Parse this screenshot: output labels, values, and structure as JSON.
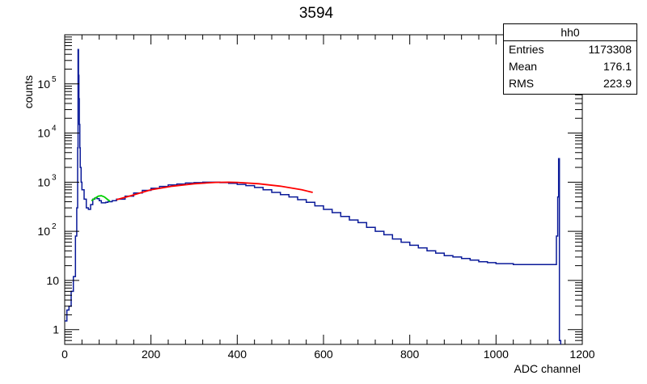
{
  "chart_data": {
    "type": "line",
    "title": "3594",
    "xlabel": "ADC channel",
    "ylabel": "counts",
    "xlim": [
      0,
      1200
    ],
    "ylim": [
      0.5,
      1000000
    ],
    "y_scale": "log",
    "x_ticks": [
      "0",
      "200",
      "400",
      "600",
      "800",
      "1000",
      "1200"
    ],
    "y_ticks": [
      "1",
      "10",
      "10^2",
      "10^3",
      "10^4",
      "10^5"
    ],
    "grid": false,
    "colors": {
      "histogram": "#0a1a99",
      "fit_main": "#ff0000",
      "fit_peak": "#00d000"
    },
    "series": [
      {
        "kind": "histogram",
        "x": [
          0,
          5,
          10,
          15,
          20,
          25,
          28,
          30,
          31,
          32,
          33,
          34,
          35,
          36,
          38,
          40,
          45,
          50,
          55,
          60,
          65,
          70,
          75,
          80,
          85,
          90,
          95,
          100,
          110,
          120,
          140,
          160,
          180,
          200,
          220,
          240,
          260,
          280,
          300,
          320,
          340,
          360,
          380,
          400,
          420,
          440,
          460,
          480,
          500,
          520,
          540,
          560,
          580,
          600,
          620,
          640,
          660,
          680,
          700,
          720,
          740,
          760,
          780,
          800,
          820,
          840,
          860,
          880,
          900,
          920,
          940,
          960,
          980,
          1000,
          1020,
          1040,
          1060,
          1080,
          1100,
          1120,
          1135,
          1140,
          1143,
          1145,
          1147,
          1150
        ],
        "y": [
          1.5,
          2.5,
          3,
          6,
          12,
          80,
          300,
          5000,
          500000,
          150000,
          50000,
          15000,
          5000,
          2000,
          1000,
          700,
          450,
          300,
          280,
          350,
          450,
          480,
          460,
          420,
          380,
          380,
          390,
          400,
          420,
          450,
          520,
          600,
          680,
          750,
          820,
          880,
          920,
          960,
          980,
          1000,
          1000,
          980,
          950,
          900,
          850,
          780,
          700,
          620,
          560,
          500,
          440,
          390,
          330,
          280,
          240,
          200,
          170,
          150,
          120,
          100,
          85,
          70,
          60,
          52,
          46,
          40,
          36,
          32,
          30,
          28,
          26,
          24,
          23,
          22,
          22,
          21,
          21,
          21,
          21,
          21,
          21,
          80,
          500,
          3000,
          0.6,
          0.5
        ]
      },
      {
        "kind": "fit",
        "name": "",
        "color": "red",
        "x": [
          120,
          150,
          200,
          250,
          300,
          350,
          380,
          400,
          450,
          500,
          550,
          575
        ],
        "y": [
          440,
          520,
          700,
          830,
          930,
          990,
          1000,
          990,
          930,
          830,
          700,
          620
        ]
      },
      {
        "kind": "fit",
        "name": "",
        "color": "green",
        "x": [
          62,
          70,
          78,
          85,
          92,
          100,
          105
        ],
        "y": [
          420,
          470,
          520,
          530,
          500,
          440,
          410
        ]
      }
    ]
  },
  "stats_box": {
    "name": "hh0",
    "rows": [
      {
        "label": "Entries",
        "value": "1173308"
      },
      {
        "label": "Mean",
        "value": "176.1"
      },
      {
        "label": "RMS",
        "value": "223.9"
      }
    ]
  }
}
